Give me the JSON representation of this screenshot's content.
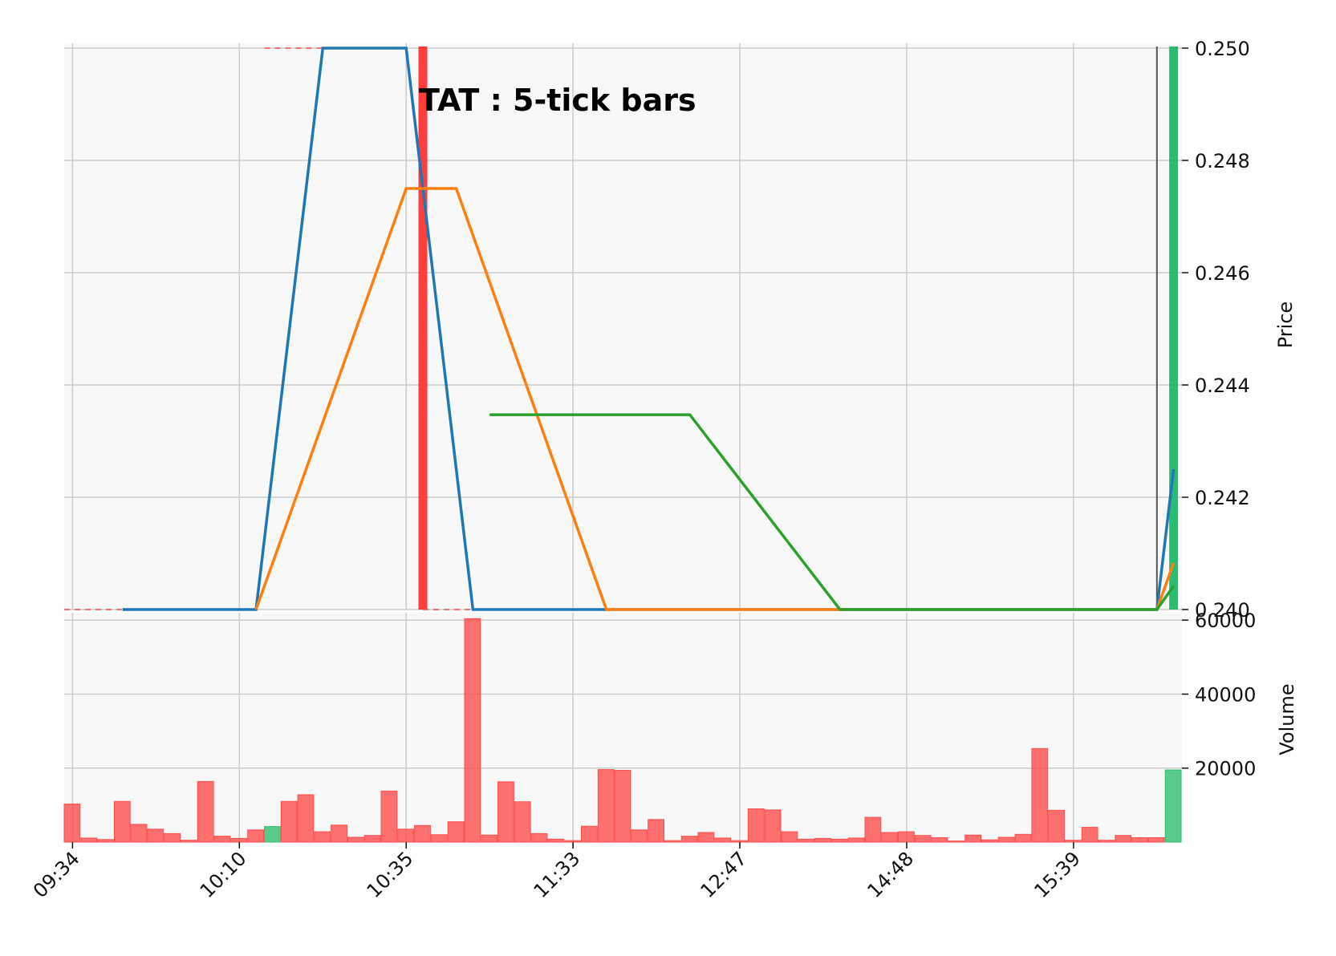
{
  "chart_data": {
    "type": "line",
    "title": "TAT : 5-tick bars",
    "colors": {
      "background": "#f8f8f8",
      "grid": "#cccccc",
      "down": "#ff4d4d",
      "up": "#2fbf71",
      "series_1": "#1f77b4",
      "series_2": "#ff7f0e",
      "series_3": "#2ca02c"
    },
    "x_tick_labels": [
      "09:34",
      "10:10",
      "10:35",
      "11:33",
      "12:47",
      "14:48",
      "15:39"
    ],
    "bar_count": 67,
    "price_panel": {
      "ylabel": "Price",
      "ylim": [
        0.24,
        0.25
      ],
      "y_ticks": [
        "0.240",
        "0.242",
        "0.244",
        "0.246",
        "0.248",
        "0.250"
      ],
      "grid": true,
      "series": [
        {
          "x": [
            3,
            11,
            15,
            20,
            24,
            32,
            65,
            66
          ],
          "values": [
            0.24,
            0.24,
            0.25,
            0.25,
            0.24,
            0.24,
            0.24,
            0.2425
          ]
        },
        {
          "x": [
            11,
            20,
            23,
            32,
            65,
            66
          ],
          "values": [
            0.24,
            0.2475,
            0.2475,
            0.24,
            0.24,
            0.24083
          ]
        },
        {
          "x": [
            25,
            37,
            46,
            65,
            66
          ],
          "values": [
            0.24347,
            0.24347,
            0.24,
            0.24,
            0.24042
          ]
        }
      ],
      "reference_lines": [
        {
          "value": 0.24,
          "x_range": [
            0,
            3
          ],
          "color": "#ff4d4d",
          "style": "dashed"
        },
        {
          "value": 0.24,
          "x_range": [
            21.5,
            24
          ],
          "color": "#ff4d4d",
          "style": "dashed"
        },
        {
          "value": 0.25,
          "x_range": [
            12,
            15
          ],
          "color": "#ff4d4d",
          "style": "dashed"
        }
      ],
      "markers": [
        {
          "x": 21,
          "color": "#ff3333"
        },
        {
          "x": 65,
          "color": "#444444"
        },
        {
          "x": 66,
          "color": "#1db86c"
        }
      ]
    },
    "volume_panel": {
      "ylabel": "Volume",
      "ylim": [
        0,
        62000
      ],
      "y_ticks": [
        "20000",
        "40000",
        "60000"
      ],
      "grid": true,
      "values": [
        10300,
        1100,
        700,
        11000,
        4800,
        3500,
        2300,
        500,
        16400,
        1600,
        1000,
        3300,
        4200,
        11000,
        12800,
        2800,
        4600,
        1300,
        1800,
        13800,
        3500,
        4500,
        2000,
        5500,
        60400,
        1900,
        16300,
        10900,
        2300,
        800,
        400,
        4300,
        19600,
        19400,
        3300,
        6100,
        400,
        1600,
        2600,
        1100,
        400,
        9000,
        8700,
        2800,
        800,
        1000,
        800,
        1100,
        6700,
        2600,
        2800,
        1800,
        1200,
        300,
        1900,
        600,
        1300,
        2100,
        25300,
        8600,
        500,
        4000,
        500,
        1800,
        1200,
        1200,
        19500
      ],
      "up_indices": [
        12,
        66
      ]
    }
  }
}
